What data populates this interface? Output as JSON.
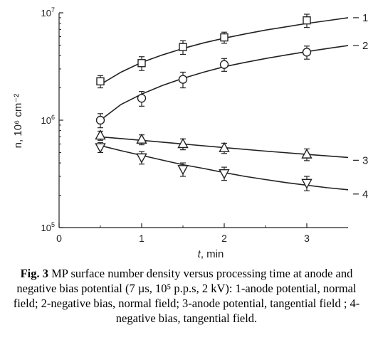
{
  "chart_data": {
    "type": "scatter",
    "xlabel": "t, min",
    "xlabel_main": "t",
    "xlabel_unit": ", min",
    "ylabel": "n, 10⁶ cm⁻²",
    "xlim": [
      0,
      3.5
    ],
    "x_ticks": [
      0,
      1,
      2,
      3
    ],
    "x_tick_labels": [
      "0",
      "1",
      "2",
      "3"
    ],
    "y_scale": "log",
    "ylim": [
      100000,
      10000000
    ],
    "y_ticks": [
      {
        "value": 100000,
        "base": "10",
        "exp": "5"
      },
      {
        "value": 1000000,
        "base": "10",
        "exp": "6"
      },
      {
        "value": 10000000,
        "base": "10",
        "exp": "7"
      }
    ],
    "grid": false,
    "series": [
      {
        "name": "1",
        "marker": "square",
        "x": [
          0.5,
          1.0,
          1.5,
          2.0,
          3.0
        ],
        "y": [
          2300000,
          3400000,
          4800000,
          5900000,
          8500000
        ],
        "yerr": [
          300000,
          500000,
          700000,
          700000,
          1200000
        ],
        "fit_x": [
          0.5,
          0.75,
          1.0,
          1.25,
          1.5,
          1.75,
          2.0,
          2.25,
          2.5,
          2.75,
          3.0,
          3.25,
          3.5
        ],
        "fit_y": [
          2150000,
          2800000,
          3450000,
          4050000,
          4650000,
          5250000,
          5800000,
          6350000,
          6900000,
          7400000,
          7950000,
          8450000,
          9000000
        ]
      },
      {
        "name": "2",
        "marker": "circle",
        "x": [
          0.5,
          1.0,
          1.5,
          2.0,
          3.0
        ],
        "y": [
          1000000,
          1600000,
          2400000,
          3300000,
          4300000
        ],
        "yerr": [
          150000,
          250000,
          400000,
          450000,
          600000
        ],
        "fit_x": [
          0.5,
          0.75,
          1.0,
          1.25,
          1.5,
          1.75,
          2.0,
          2.25,
          2.5,
          2.75,
          3.0,
          3.25,
          3.5
        ],
        "fit_y": [
          1000000,
          1400000,
          1750000,
          2100000,
          2450000,
          2800000,
          3150000,
          3450000,
          3750000,
          4050000,
          4350000,
          4650000,
          4950000
        ]
      },
      {
        "name": "3",
        "marker": "triangle-up",
        "x": [
          0.5,
          1.0,
          1.5,
          2.0,
          3.0
        ],
        "y": [
          720000,
          660000,
          600000,
          550000,
          480000
        ],
        "yerr": [
          70000,
          70000,
          70000,
          60000,
          60000
        ],
        "fit_x": [
          0.5,
          1.0,
          1.5,
          2.0,
          2.5,
          3.0,
          3.5
        ],
        "fit_y": [
          700000,
          650000,
          600000,
          555000,
          515000,
          480000,
          450000
        ]
      },
      {
        "name": "4",
        "marker": "triangle-down",
        "x": [
          0.5,
          1.0,
          1.5,
          2.0,
          3.0
        ],
        "y": [
          560000,
          450000,
          350000,
          320000,
          260000
        ],
        "yerr": [
          60000,
          60000,
          50000,
          45000,
          40000
        ],
        "fit_x": [
          0.5,
          0.75,
          1.0,
          1.25,
          1.5,
          1.75,
          2.0,
          2.25,
          2.5,
          2.75,
          3.0,
          3.25,
          3.5
        ],
        "fit_y": [
          580000,
          520000,
          470000,
          425000,
          385000,
          355000,
          325000,
          300000,
          280000,
          262000,
          248000,
          235000,
          225000
        ]
      }
    ]
  },
  "caption": {
    "label": "Fig. 3",
    "text": " MP surface number density versus processing time at anode and negative bias potential (7 µs, 10⁵ p.p.s, 2 kV): 1-anode potential, normal field; 2-negative bias, normal field; 3-anode potential, tangential field ; 4-negative bias, tangential field."
  }
}
